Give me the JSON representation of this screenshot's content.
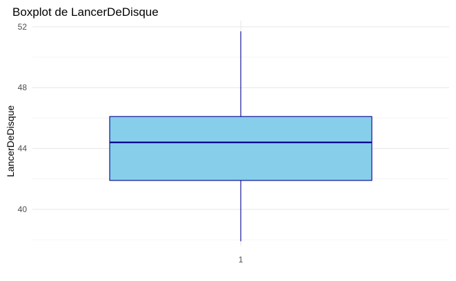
{
  "chart_data": {
    "type": "boxplot",
    "title": "Boxplot de LancerDeDisque",
    "xlabel": "",
    "ylabel": "LancerDeDisque",
    "categories": [
      "1"
    ],
    "boxes": [
      {
        "category": "1",
        "min": 37.9,
        "q1": 41.9,
        "median": 44.4,
        "q3": 46.1,
        "max": 51.7
      }
    ],
    "ylim": [
      37.6,
      52.4
    ],
    "yticks": [
      40,
      44,
      48,
      52
    ],
    "ytick_labels": [
      "40",
      "44",
      "48",
      "52"
    ],
    "grid": true,
    "colors": {
      "box_fill": "#87CEEB",
      "box_border": "#00008B",
      "grid": "#e6e6e6"
    }
  }
}
